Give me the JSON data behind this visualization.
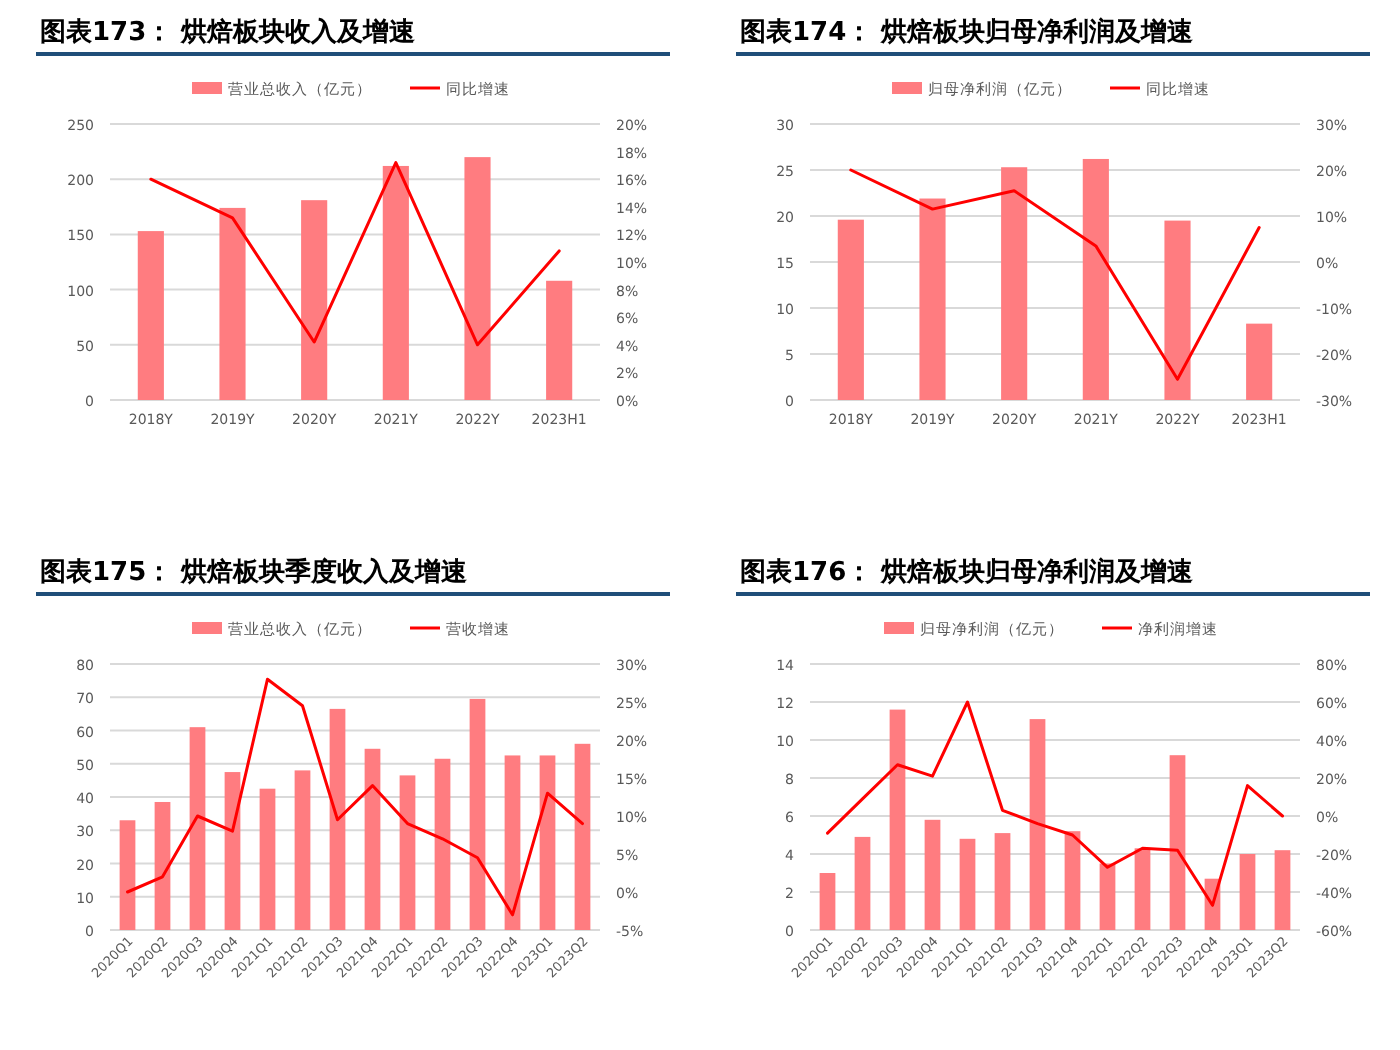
{
  "chart_data": [
    {
      "type": "bar",
      "title": "图表173：  烘焙板块收入及增速",
      "categories": [
        "2018Y",
        "2019Y",
        "2020Y",
        "2021Y",
        "2022Y",
        "2023H1"
      ],
      "series": [
        {
          "name": "营业总收入（亿元）",
          "color": "#ff7c80",
          "values": [
            153,
            174,
            181,
            212,
            220,
            108
          ]
        },
        {
          "type": "line",
          "axis": "y2",
          "name": "同比增速",
          "color": "#ff0000",
          "values": [
            16,
            13.2,
            4.2,
            17.2,
            4,
            10.8
          ]
        }
      ],
      "ylim": [
        0,
        250
      ],
      "yticks": [
        0,
        50,
        100,
        150,
        200,
        250
      ],
      "y2lim": [
        0,
        20
      ],
      "y2ticks": [
        {
          "value": 0,
          "label": "0%"
        },
        {
          "value": 2,
          "label": "2%"
        },
        {
          "value": 4,
          "label": "4%"
        },
        {
          "value": 6,
          "label": "6%"
        },
        {
          "value": 8,
          "label": "8%"
        },
        {
          "value": 10,
          "label": "10%"
        },
        {
          "value": 12,
          "label": "12%"
        },
        {
          "value": 14,
          "label": "14%"
        },
        {
          "value": 16,
          "label": "16%"
        },
        {
          "value": 18,
          "label": "18%"
        },
        {
          "value": 20,
          "label": "20%"
        }
      ],
      "grid": "y",
      "legend": "top"
    },
    {
      "type": "bar",
      "title": "图表174：  烘焙板块归母净利润及增速",
      "categories": [
        "2018Y",
        "2019Y",
        "2020Y",
        "2021Y",
        "2022Y",
        "2023H1"
      ],
      "series": [
        {
          "name": "归母净利润（亿元）",
          "color": "#ff7c80",
          "values": [
            19.6,
            21.9,
            25.3,
            26.2,
            19.5,
            8.3
          ]
        },
        {
          "type": "line",
          "axis": "y2",
          "name": "同比增速",
          "color": "#ff0000",
          "values": [
            20,
            11.5,
            15.5,
            3.5,
            -25.5,
            7.5
          ]
        }
      ],
      "ylim": [
        0,
        30
      ],
      "yticks": [
        0,
        5,
        10,
        15,
        20,
        25,
        30
      ],
      "y2lim": [
        -30,
        30
      ],
      "y2ticks": [
        {
          "value": -30,
          "label": "-30%"
        },
        {
          "value": -20,
          "label": "-20%"
        },
        {
          "value": -10,
          "label": "-10%"
        },
        {
          "value": 0,
          "label": "0%"
        },
        {
          "value": 10,
          "label": "10%"
        },
        {
          "value": 20,
          "label": "20%"
        },
        {
          "value": 30,
          "label": "30%"
        }
      ],
      "grid": "y",
      "legend": "top"
    },
    {
      "type": "bar",
      "title": "图表175：  烘焙板块季度收入及增速",
      "categories": [
        "2020Q1",
        "2020Q2",
        "2020Q3",
        "2020Q4",
        "2021Q1",
        "2021Q2",
        "2021Q3",
        "2021Q4",
        "2022Q1",
        "2022Q2",
        "2022Q3",
        "2022Q4",
        "2023Q1",
        "2023Q2"
      ],
      "series": [
        {
          "name": "营业总收入（亿元）",
          "color": "#ff7c80",
          "values": [
            33,
            38.5,
            61,
            47.5,
            42.5,
            48,
            66.5,
            54.5,
            46.5,
            51.5,
            69.5,
            52.5,
            52.5,
            56
          ]
        },
        {
          "type": "line",
          "axis": "y2",
          "name": "营收增速",
          "color": "#ff0000",
          "values": [
            0,
            2,
            10,
            8,
            28,
            24.5,
            9.5,
            14,
            9,
            7,
            4.5,
            -3,
            13,
            9
          ]
        }
      ],
      "ylim": [
        0,
        80
      ],
      "yticks": [
        0,
        10,
        20,
        30,
        40,
        50,
        60,
        70,
        80
      ],
      "y2lim": [
        -5,
        30
      ],
      "y2ticks": [
        {
          "value": -5,
          "label": "-5%"
        },
        {
          "value": 0,
          "label": "0%"
        },
        {
          "value": 5,
          "label": "5%"
        },
        {
          "value": 10,
          "label": "10%"
        },
        {
          "value": 15,
          "label": "15%"
        },
        {
          "value": 20,
          "label": "20%"
        },
        {
          "value": 25,
          "label": "25%"
        },
        {
          "value": 30,
          "label": "30%"
        }
      ],
      "grid": "y",
      "legend": "top"
    },
    {
      "type": "bar",
      "title": "图表176：  烘焙板块归母净利润及增速",
      "categories": [
        "2020Q1",
        "2020Q2",
        "2020Q3",
        "2020Q4",
        "2021Q1",
        "2021Q2",
        "2021Q3",
        "2021Q4",
        "2022Q1",
        "2022Q2",
        "2022Q3",
        "2022Q4",
        "2023Q1",
        "2023Q2"
      ],
      "series": [
        {
          "name": "归母净利润（亿元）",
          "color": "#ff7c80",
          "values": [
            3,
            4.9,
            11.6,
            5.8,
            4.8,
            5.1,
            11.1,
            5.2,
            3.5,
            4.3,
            9.2,
            2.7,
            4,
            4.2
          ]
        },
        {
          "type": "line",
          "axis": "y2",
          "name": "净利润增速",
          "color": "#ff0000",
          "values": [
            -9,
            9,
            27,
            21,
            60,
            3,
            -4,
            -10,
            -27,
            -17,
            -18,
            -47,
            16,
            0
          ]
        }
      ],
      "ylim": [
        0,
        14
      ],
      "yticks": [
        0,
        2,
        4,
        6,
        8,
        10,
        12,
        14
      ],
      "y2lim": [
        -60,
        80
      ],
      "y2ticks": [
        {
          "value": -60,
          "label": "-60%"
        },
        {
          "value": -40,
          "label": "-40%"
        },
        {
          "value": -20,
          "label": "-20%"
        },
        {
          "value": 0,
          "label": "0%"
        },
        {
          "value": 20,
          "label": "20%"
        },
        {
          "value": 40,
          "label": "40%"
        },
        {
          "value": 60,
          "label": "60%"
        },
        {
          "value": 80,
          "label": "80%"
        }
      ],
      "grid": "y",
      "legend": "top"
    }
  ]
}
